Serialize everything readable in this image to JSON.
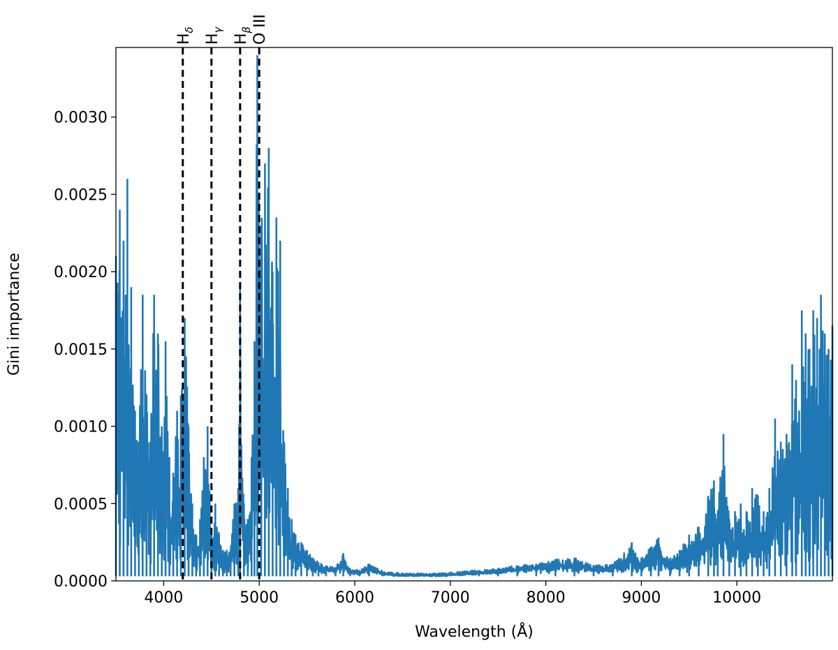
{
  "chart_data": {
    "type": "line",
    "title": "",
    "xlabel": "Wavelength (Å)",
    "ylabel": "Gini importance",
    "xlim": [
      3500,
      11000
    ],
    "ylim": [
      0,
      0.00345
    ],
    "x_ticks": [
      4000,
      5000,
      6000,
      7000,
      8000,
      9000,
      10000
    ],
    "x_tick_labels": [
      "4000",
      "5000",
      "6000",
      "7000",
      "8000",
      "9000",
      "10000"
    ],
    "y_ticks": [
      0,
      0.0005,
      0.001,
      0.0015,
      0.002,
      0.0025,
      0.003
    ],
    "y_tick_labels": [
      "0.0000",
      "0.0005",
      "0.0010",
      "0.0015",
      "0.0020",
      "0.0025",
      "0.0030"
    ],
    "grid": false,
    "series_color": "#1f77b4",
    "reference_lines": [
      {
        "x": 4200,
        "label_main": "H",
        "label_sub": "δ"
      },
      {
        "x": 4500,
        "label_main": "H",
        "label_sub": "γ"
      },
      {
        "x": 4800,
        "label_main": "H",
        "label_sub": "β"
      },
      {
        "x": 5000,
        "label_main": "O III",
        "label_sub": ""
      }
    ],
    "envelope": [
      [
        3500,
        0.0021
      ],
      [
        3540,
        0.0024
      ],
      [
        3580,
        0.0022
      ],
      [
        3620,
        0.0026
      ],
      [
        3660,
        0.0019
      ],
      [
        3700,
        0.0011
      ],
      [
        3740,
        0.0009
      ],
      [
        3780,
        0.00185
      ],
      [
        3820,
        0.0012
      ],
      [
        3860,
        0.0009
      ],
      [
        3900,
        0.00185
      ],
      [
        3940,
        0.0016
      ],
      [
        3980,
        0.001
      ],
      [
        4020,
        0.00155
      ],
      [
        4060,
        0.0008
      ],
      [
        4100,
        0.0007
      ],
      [
        4140,
        0.0011
      ],
      [
        4180,
        0.0012
      ],
      [
        4220,
        0.0017
      ],
      [
        4260,
        0.001
      ],
      [
        4300,
        0.0005
      ],
      [
        4340,
        0.0003
      ],
      [
        4380,
        0.0004
      ],
      [
        4420,
        0.0008
      ],
      [
        4460,
        0.001
      ],
      [
        4500,
        0.0003
      ],
      [
        4540,
        0.0005
      ],
      [
        4580,
        0.0003
      ],
      [
        4620,
        0.0002
      ],
      [
        4660,
        0.0002
      ],
      [
        4700,
        0.0002
      ],
      [
        4740,
        0.0005
      ],
      [
        4780,
        0.0006
      ],
      [
        4800,
        0.0019
      ],
      [
        4840,
        0.0005
      ],
      [
        4880,
        0.0004
      ],
      [
        4920,
        0.0008
      ],
      [
        4950,
        0.00155
      ],
      [
        4980,
        0.0034
      ],
      [
        5020,
        0.0023
      ],
      [
        5060,
        0.0027
      ],
      [
        5100,
        0.0028
      ],
      [
        5140,
        0.002
      ],
      [
        5180,
        0.00235
      ],
      [
        5220,
        0.0022
      ],
      [
        5260,
        0.0009
      ],
      [
        5300,
        0.0006
      ],
      [
        5340,
        0.0004
      ],
      [
        5380,
        0.0003
      ],
      [
        5440,
        0.00025
      ],
      [
        5500,
        0.0002
      ],
      [
        5560,
        0.00015
      ],
      [
        5620,
        0.00012
      ],
      [
        5700,
        0.0001
      ],
      [
        5800,
        9e-05
      ],
      [
        5880,
        0.00018
      ],
      [
        5950,
        8e-05
      ],
      [
        6050,
        7e-05
      ],
      [
        6150,
        0.00011
      ],
      [
        6300,
        6e-05
      ],
      [
        6500,
        5e-05
      ],
      [
        6700,
        5e-05
      ],
      [
        6900,
        5e-05
      ],
      [
        7100,
        6e-05
      ],
      [
        7300,
        7e-05
      ],
      [
        7500,
        8e-05
      ],
      [
        7700,
        0.0001
      ],
      [
        7900,
        0.00011
      ],
      [
        8100,
        0.00014
      ],
      [
        8300,
        0.00015
      ],
      [
        8500,
        0.0001
      ],
      [
        8700,
        0.00011
      ],
      [
        8900,
        0.00025
      ],
      [
        9000,
        0.00015
      ],
      [
        9100,
        0.00022
      ],
      [
        9180,
        0.00028
      ],
      [
        9300,
        0.00015
      ],
      [
        9400,
        0.0002
      ],
      [
        9500,
        0.0003
      ],
      [
        9600,
        0.00035
      ],
      [
        9700,
        0.00055
      ],
      [
        9760,
        0.00065
      ],
      [
        9800,
        0.00045
      ],
      [
        9860,
        0.00095
      ],
      [
        9920,
        0.0004
      ],
      [
        9980,
        0.00045
      ],
      [
        10040,
        0.0005
      ],
      [
        10100,
        0.00045
      ],
      [
        10160,
        0.0006
      ],
      [
        10220,
        0.00055
      ],
      [
        10280,
        0.00045
      ],
      [
        10340,
        0.0006
      ],
      [
        10400,
        0.00105
      ],
      [
        10460,
        0.0009
      ],
      [
        10520,
        0.00095
      ],
      [
        10580,
        0.0014
      ],
      [
        10620,
        0.0013
      ],
      [
        10680,
        0.00175
      ],
      [
        10720,
        0.0016
      ],
      [
        10760,
        0.0015
      ],
      [
        10800,
        0.00175
      ],
      [
        10840,
        0.0017
      ],
      [
        10880,
        0.00185
      ],
      [
        10920,
        0.0016
      ],
      [
        10960,
        0.0015
      ],
      [
        11000,
        0.00165
      ]
    ]
  }
}
